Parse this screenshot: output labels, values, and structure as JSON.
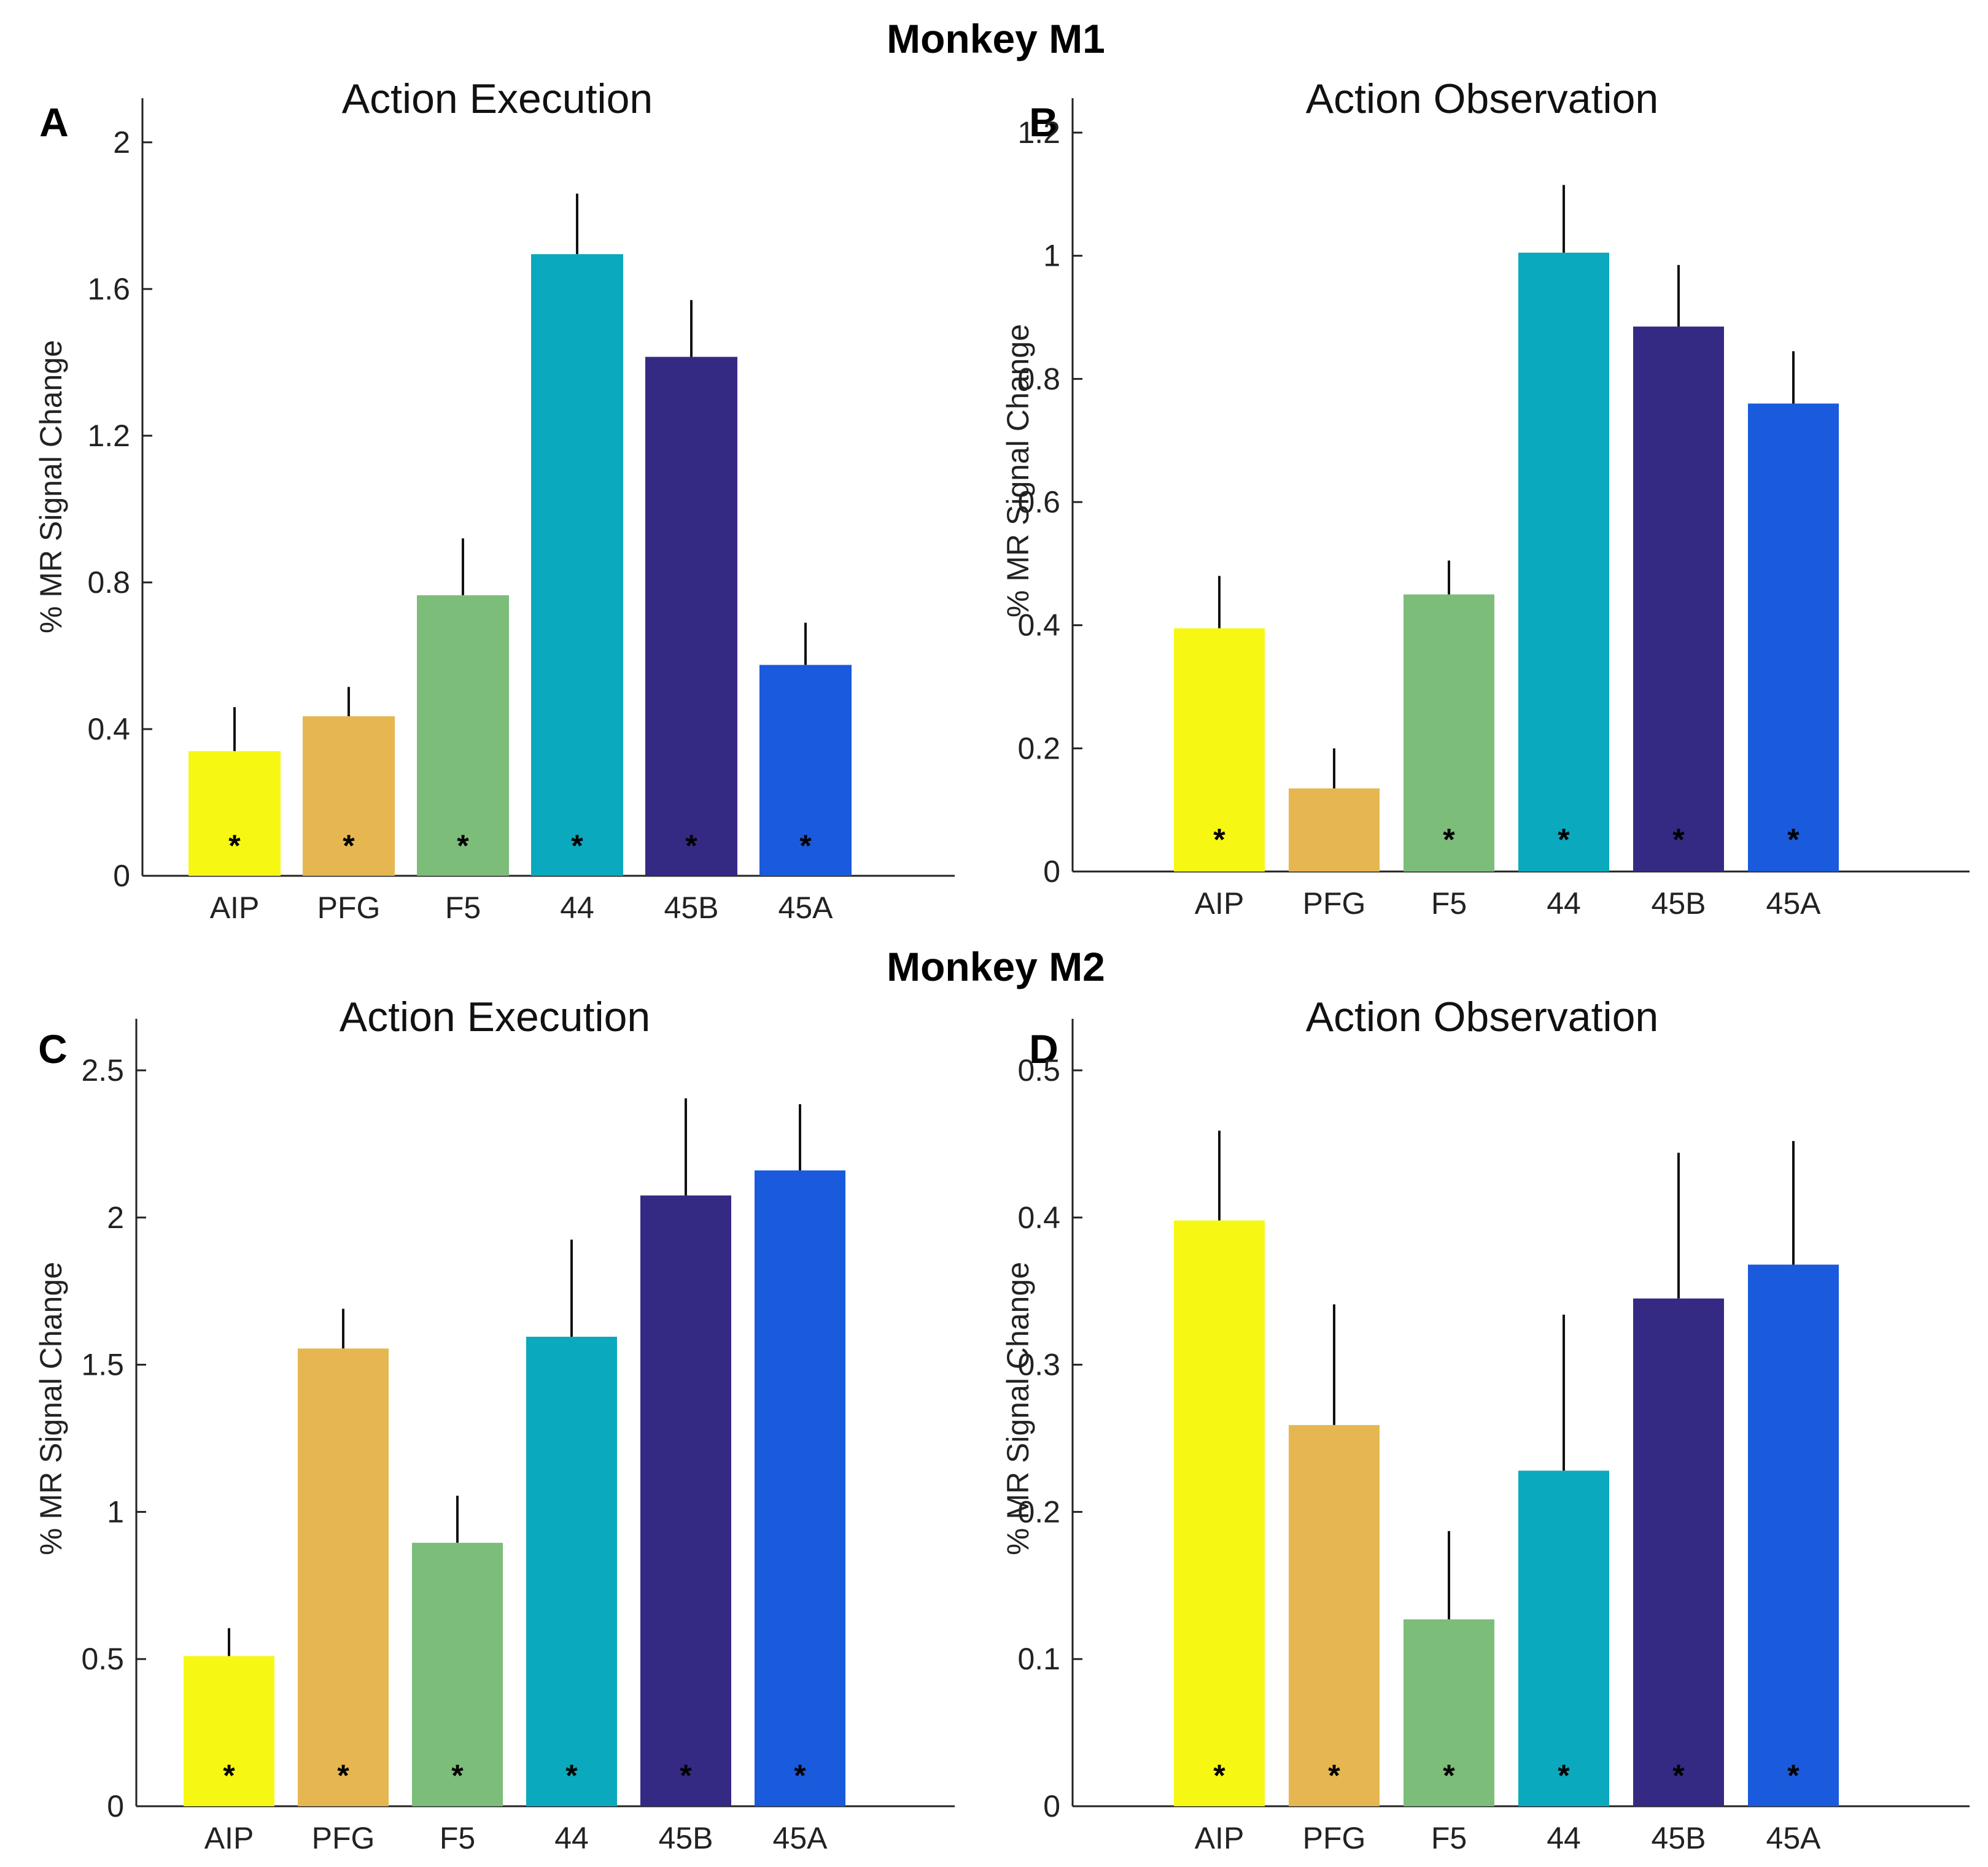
{
  "figure": {
    "monkey_titles": [
      "Monkey M1",
      "Monkey M2"
    ]
  },
  "colors": {
    "AIP": "#f7f714",
    "PFG": "#e6b750",
    "F5": "#7cbd7a",
    "44": "#0aa9bd",
    "45B": "#342a83",
    "45A": "#1a5adc"
  },
  "chart_data": [
    {
      "panel": "A",
      "type": "bar",
      "title": "Action Execution",
      "xlabel": "",
      "ylabel": "% MR Signal Change",
      "ylim": [
        0,
        2.05
      ],
      "yticks": [
        0,
        0.4,
        0.8,
        1.2,
        1.6,
        2
      ],
      "ytick_labels": [
        "0",
        "0.4",
        "0.8",
        "1.2",
        "1.6",
        "2"
      ],
      "categories": [
        "AIP",
        "PFG",
        "F5",
        "44",
        "45B",
        "45A"
      ],
      "values": [
        0.34,
        0.435,
        0.765,
        1.695,
        1.415,
        0.575
      ],
      "errors": [
        0.12,
        0.08,
        0.155,
        0.165,
        0.155,
        0.115
      ],
      "significant": [
        true,
        true,
        true,
        true,
        true,
        true
      ],
      "marker": "*"
    },
    {
      "panel": "B",
      "type": "bar",
      "title": "Action Observation",
      "xlabel": "",
      "ylabel": "% MR Signal Change",
      "ylim": [
        0,
        1.22
      ],
      "yticks": [
        0,
        0.2,
        0.4,
        0.6,
        0.8,
        1,
        1.2
      ],
      "ytick_labels": [
        "0",
        "0.2",
        "0.4",
        "0.6",
        "0.8",
        "1",
        "1.2"
      ],
      "categories": [
        "AIP",
        "PFG",
        "F5",
        "44",
        "45B",
        "45A"
      ],
      "values": [
        0.395,
        0.135,
        0.45,
        1.005,
        0.885,
        0.76
      ],
      "errors": [
        0.085,
        0.065,
        0.055,
        0.11,
        0.1,
        0.085
      ],
      "significant": [
        true,
        false,
        true,
        true,
        true,
        true
      ],
      "marker": "*"
    },
    {
      "panel": "C",
      "type": "bar",
      "title": "Action Execution",
      "xlabel": "",
      "ylabel": "% MR Signal Change",
      "ylim": [
        0,
        2.55
      ],
      "yticks": [
        0,
        0.5,
        1,
        1.5,
        2,
        2.5
      ],
      "ytick_labels": [
        "0",
        "0.5",
        "1",
        "1.5",
        "2",
        "2.5"
      ],
      "categories": [
        "AIP",
        "PFG",
        "F5",
        "44",
        "45B",
        "45A"
      ],
      "values": [
        0.51,
        1.555,
        0.895,
        1.595,
        2.075,
        2.16
      ],
      "errors": [
        0.095,
        0.135,
        0.16,
        0.33,
        0.33,
        0.225
      ],
      "significant": [
        true,
        true,
        true,
        true,
        true,
        true
      ],
      "marker": "*"
    },
    {
      "panel": "D",
      "type": "bar",
      "title": "Action Observation",
      "xlabel": "",
      "ylabel": "% MR Signal Change",
      "ylim": [
        0,
        0.51
      ],
      "yticks": [
        0,
        0.1,
        0.2,
        0.3,
        0.4,
        0.5
      ],
      "ytick_labels": [
        "0",
        "0.1",
        "0.2",
        "0.3",
        "0.4",
        "0.5"
      ],
      "categories": [
        "AIP",
        "PFG",
        "F5",
        "44",
        "45B",
        "45A"
      ],
      "values": [
        0.398,
        0.259,
        0.127,
        0.228,
        0.345,
        0.368
      ],
      "errors": [
        0.061,
        0.082,
        0.06,
        0.106,
        0.099,
        0.084
      ],
      "significant": [
        true,
        true,
        true,
        true,
        true,
        true
      ],
      "marker": "*"
    }
  ]
}
